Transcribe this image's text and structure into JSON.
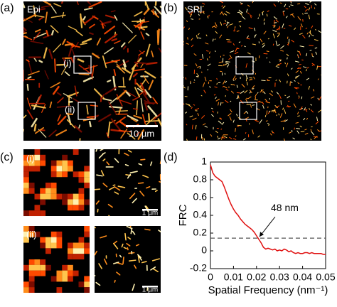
{
  "panels": {
    "a": {
      "label": "(a)",
      "title": "Epi",
      "roi_labels": [
        "(i)",
        "(ii)"
      ],
      "scale_bar": "10 µm"
    },
    "b": {
      "label": "(b)",
      "title": "SRI"
    },
    "c": {
      "label": "(c)",
      "rows": [
        "(i)",
        "(ii)"
      ],
      "scale_bar": "1 µm"
    }
  },
  "chart_data": {
    "type": "line",
    "panel_label": "(d)",
    "x": [
      0,
      0.001,
      0.002,
      0.003,
      0.004,
      0.005,
      0.006,
      0.007,
      0.008,
      0.009,
      0.01,
      0.011,
      0.012,
      0.013,
      0.014,
      0.015,
      0.016,
      0.017,
      0.018,
      0.019,
      0.02,
      0.021,
      0.022,
      0.023,
      0.024,
      0.025,
      0.026,
      0.027,
      0.028,
      0.029,
      0.03,
      0.031,
      0.032,
      0.033,
      0.034,
      0.035,
      0.036,
      0.037,
      0.038,
      0.039,
      0.04,
      0.041,
      0.042,
      0.043,
      0.044,
      0.045,
      0.046,
      0.047,
      0.048,
      0.049,
      0.05
    ],
    "series": [
      {
        "color": "#e01010",
        "values": [
          0.97,
          0.88,
          0.84,
          0.82,
          0.8,
          0.78,
          0.72,
          0.65,
          0.58,
          0.52,
          0.47,
          0.43,
          0.4,
          0.36,
          0.33,
          0.3,
          0.28,
          0.26,
          0.24,
          0.21,
          0.17,
          0.13,
          0.09,
          0.04,
          0.02,
          0.03,
          0.02,
          0.01,
          0.02,
          0.0,
          0.01,
          0.0,
          0.02,
          0.01,
          -0.01,
          0.0,
          -0.02,
          -0.03,
          -0.02,
          -0.03,
          -0.03,
          -0.02,
          -0.02,
          -0.03,
          -0.02,
          -0.03,
          -0.03,
          -0.03,
          -0.03,
          -0.04,
          -0.04
        ]
      }
    ],
    "xlim": [
      0,
      0.05
    ],
    "ylim": [
      -0.2,
      1
    ],
    "xticks": [
      0,
      0.01,
      0.02,
      0.03,
      0.04,
      0.05
    ],
    "yticks": [
      -0.2,
      0,
      0.2,
      0.4,
      0.6,
      0.8,
      1
    ],
    "xlabel": "Spatial Frequency (nm⁻¹)",
    "ylabel": "FRC",
    "threshold": 0.143,
    "annotation": "48 nm"
  }
}
